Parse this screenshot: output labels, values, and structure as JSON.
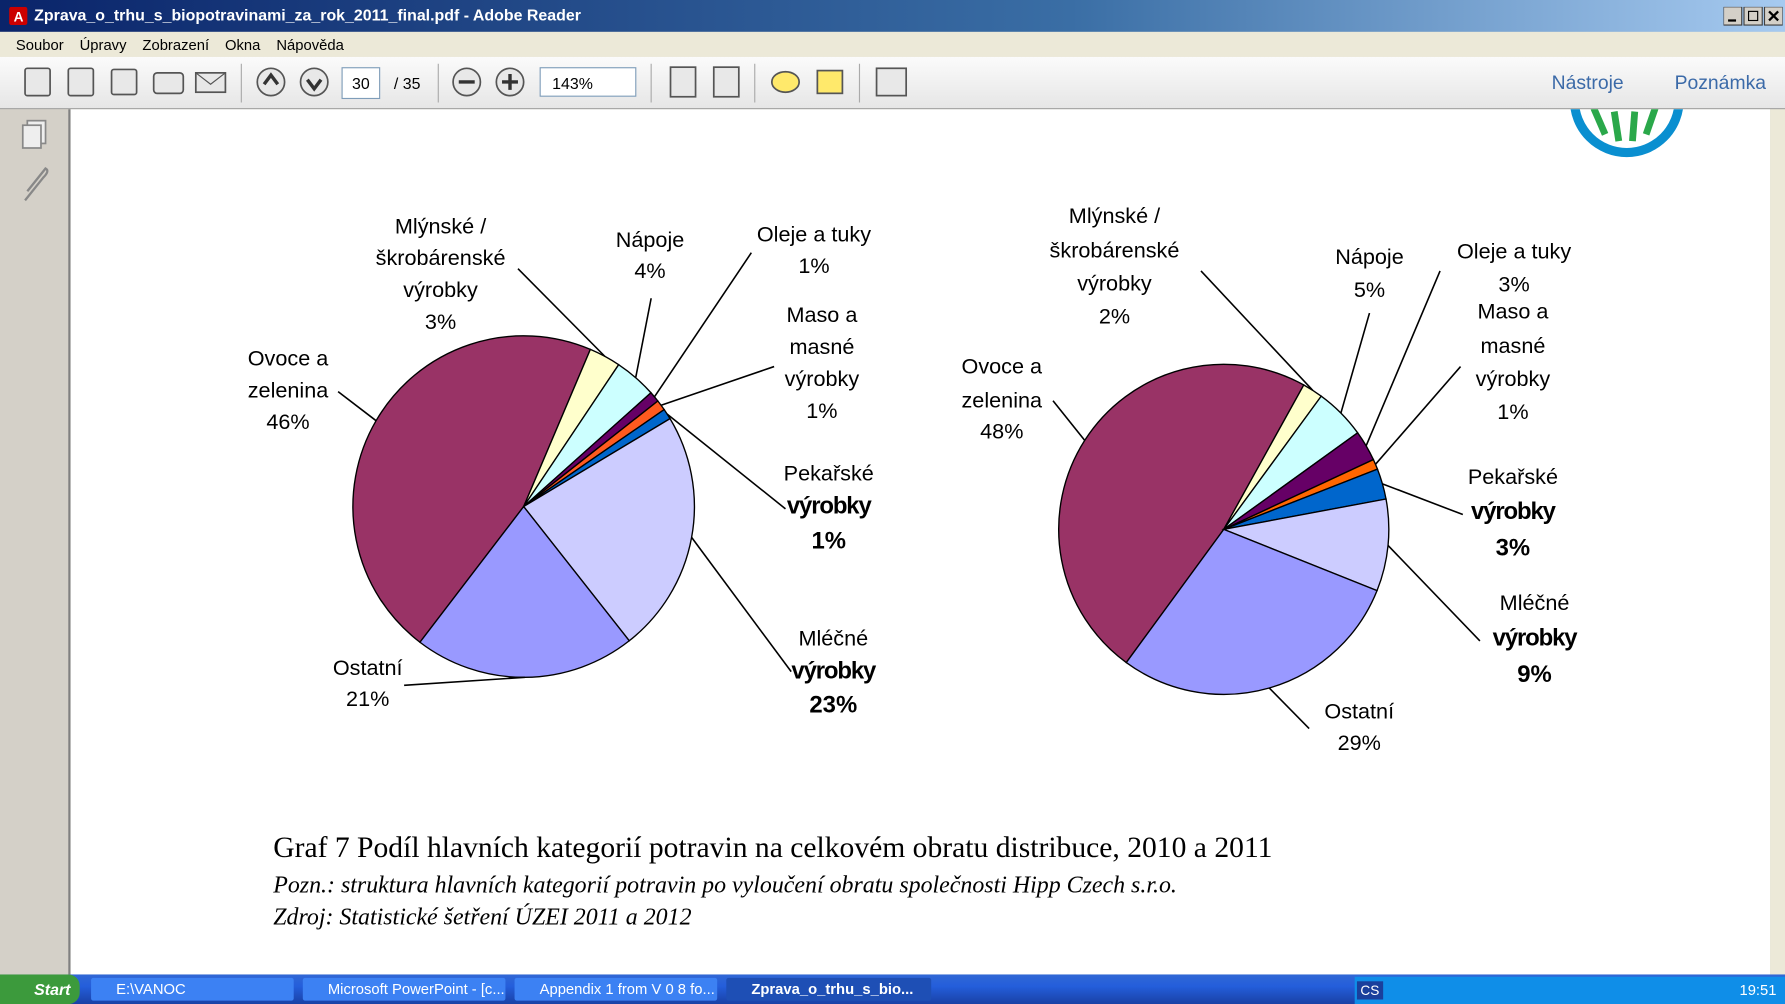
{
  "window": {
    "title": "Zprava_o_trhu_s_biopotravinami_za_rok_2011_final.pdf - Adobe Reader",
    "menu": [
      "Soubor",
      "Úpravy",
      "Zobrazení",
      "Okna",
      "Nápověda"
    ],
    "page_number": "30",
    "page_count": "/ 35",
    "zoom": "143%",
    "tools": "Nástroje",
    "comment": "Poznámka"
  },
  "chart_data": [
    {
      "type": "pie",
      "categories": [
        "Ovoce a zelenina",
        "Mlýnské / škrobárenské výrobky",
        "Nápoje",
        "Oleje a tuky",
        "Maso a masné výrobky",
        "Pekařské výrobky",
        "Mléčné výrobky",
        "Ostatní"
      ],
      "values": [
        46,
        3,
        4,
        1,
        1,
        1,
        23,
        21
      ],
      "value_labels": [
        "46%",
        "3%",
        "4%",
        "1%",
        "1%",
        "1%",
        "23%",
        "21%"
      ],
      "colors": [
        "#993366",
        "#ffffcc",
        "#ccffff",
        "#660066",
        "#ff5a1f",
        "#0066cc",
        "#ccccff",
        "#9999ff"
      ]
    },
    {
      "type": "pie",
      "categories": [
        "Ovoce a zelenina",
        "Mlýnské / škrobárenské výrobky",
        "Nápoje",
        "Oleje a tuky",
        "Maso a masné výrobky",
        "Pekařské výrobky",
        "Mléčné výrobky",
        "Ostatní"
      ],
      "values": [
        48,
        2,
        5,
        3,
        1,
        3,
        9,
        29
      ],
      "value_labels": [
        "48%",
        "2%",
        "5%",
        "3%",
        "1%",
        "3%",
        "9%",
        "29%"
      ],
      "colors": [
        "#993366",
        "#ffffcc",
        "#ccffff",
        "#660066",
        "#ff6600",
        "#0066cc",
        "#ccccff",
        "#9999ff"
      ]
    }
  ],
  "caption": {
    "title": "Graf 7 Podíl hlavních kategorií potravin na celkovém obratu distribuce, 2010 a 2011",
    "note": "Pozn.: struktura hlavních kategorií potravin po vyloučení obratu společnosti Hipp Czech s.r.o.",
    "source": "Zdroj: Statistické šetření ÚZEI 2011 a 2012"
  },
  "taskbar": {
    "start": "Start",
    "items": [
      "E:\\VANOC",
      "Microsoft PowerPoint - [c...",
      "Appendix 1 from V 0 8 fo...",
      "Zprava_o_trhu_s_bio..."
    ],
    "lang": "CS",
    "clock": "19:51"
  }
}
